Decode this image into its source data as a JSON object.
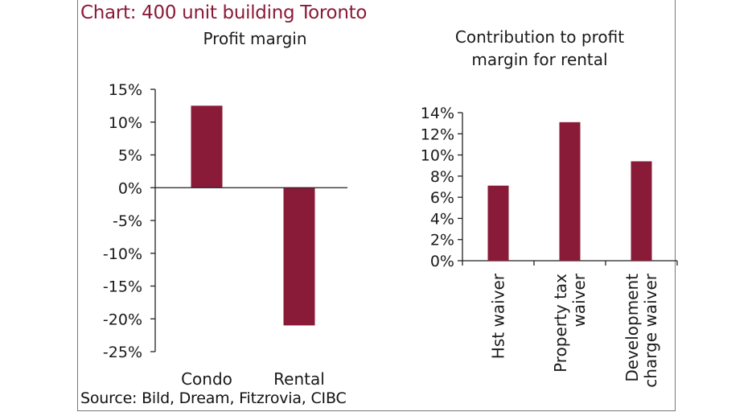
{
  "title": "Chart: 400 unit building Toronto",
  "source": "Source: Bild, Dream, Fitzrovia, CIBC",
  "colors": {
    "bar": "#8a1b38",
    "title": "#8a1b38",
    "axis": "#222222"
  },
  "chart_data": [
    {
      "type": "bar",
      "title": "Profit margin",
      "categories": [
        "Condo",
        "Rental"
      ],
      "values": [
        12.5,
        -21.0
      ],
      "ylim": [
        -25,
        15
      ],
      "yticks": [
        15,
        10,
        5,
        0,
        -5,
        -10,
        -15,
        -20,
        -25
      ],
      "ytick_labels": [
        "15%",
        "10%",
        "5%",
        "0%",
        "-5%",
        "-10%",
        "-15%",
        "-20%",
        "-25%"
      ],
      "xlabel": "",
      "ylabel": ""
    },
    {
      "type": "bar",
      "title_lines": [
        "Contribution to profit",
        "margin for rental"
      ],
      "categories": [
        [
          "Hst waiver"
        ],
        [
          "Property tax",
          "waiver"
        ],
        [
          "Development",
          "charge waiver"
        ]
      ],
      "values": [
        7.1,
        13.1,
        9.4
      ],
      "ylim": [
        0,
        14
      ],
      "yticks": [
        14,
        12,
        10,
        8,
        6,
        4,
        2,
        0
      ],
      "ytick_labels": [
        "14%",
        "12%",
        "10%",
        "8%",
        "6%",
        "4%",
        "2%",
        "0%"
      ],
      "xlabel": "",
      "ylabel": ""
    }
  ]
}
